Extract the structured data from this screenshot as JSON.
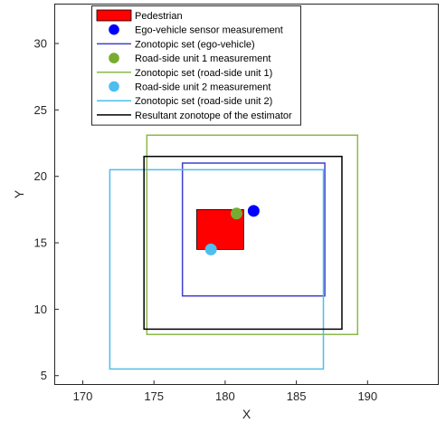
{
  "chart_data": {
    "type": "scatter",
    "title": "",
    "xlabel": "X",
    "ylabel": "Y",
    "xlim": [
      168,
      195
    ],
    "ylim": [
      4.3,
      33
    ],
    "xticks": [
      170,
      175,
      180,
      185,
      190
    ],
    "yticks": [
      5,
      10,
      15,
      20,
      25,
      30
    ],
    "grid": false,
    "legend_placement": "top-left",
    "series": [
      {
        "name": "Pedestrian",
        "kind": "filled-rect",
        "x": [
          178,
          181.3
        ],
        "y": [
          14.5,
          17.5
        ],
        "color": "#ff0000"
      },
      {
        "name": "Ego-vehicle sensor measurement",
        "kind": "point",
        "x": 182,
        "y": 17.4,
        "color": "#0000ff"
      },
      {
        "name": "Zonotopic set (ego-vehicle)",
        "kind": "rect",
        "x": [
          177,
          187
        ],
        "y": [
          11,
          21
        ],
        "color": "#3f3fcf"
      },
      {
        "name": "Road-side unit 1 measurement",
        "kind": "point",
        "x": 180.8,
        "y": 17.2,
        "color": "#77ac30"
      },
      {
        "name": "Zonotopic set (road-side unit 1)",
        "kind": "rect",
        "x": [
          174.5,
          189.3
        ],
        "y": [
          8.1,
          23.1
        ],
        "color": "#8cb84a"
      },
      {
        "name": "Road-side unit 2 measurement",
        "kind": "point",
        "x": 179,
        "y": 14.5,
        "color": "#4dbeee"
      },
      {
        "name": "Zonotopic set (road-side unit 2)",
        "kind": "rect",
        "x": [
          171.9,
          186.9
        ],
        "y": [
          5.5,
          20.5
        ],
        "color": "#4dbeee"
      },
      {
        "name": "Resultant zonotope of the estimator",
        "kind": "rect",
        "x": [
          174.3,
          188.2
        ],
        "y": [
          8.5,
          21.5
        ],
        "color": "#000000"
      }
    ]
  }
}
